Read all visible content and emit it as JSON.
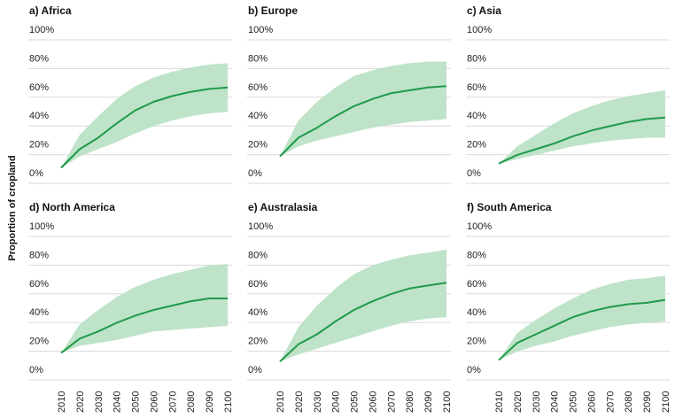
{
  "chart_data": {
    "type": "line",
    "ylabel": "Proportion of cropland",
    "x": [
      2010,
      2020,
      2030,
      2040,
      2050,
      2060,
      2070,
      2080,
      2090,
      2100
    ],
    "x_tick_labels": [
      "2010",
      "2020",
      "2030",
      "2040",
      "2050",
      "2060",
      "2070",
      "2080",
      "2090",
      "2100"
    ],
    "y_tick_labels": [
      "0%",
      "20%",
      "40%",
      "60%",
      "80%",
      "100%"
    ],
    "ylim": [
      0,
      100
    ],
    "grid": true,
    "line_color": "#1e9a4a",
    "band_color": "#bfe3c8",
    "panels": [
      {
        "title": "a) Africa",
        "median": [
          4,
          17,
          25,
          35,
          44,
          50,
          54,
          57,
          59,
          60
        ],
        "low": [
          4,
          12,
          17,
          22,
          28,
          33,
          37,
          40,
          42,
          43
        ],
        "high": [
          4,
          27,
          40,
          52,
          61,
          67,
          71,
          74,
          76,
          77
        ]
      },
      {
        "title": "b) Europe",
        "median": [
          12,
          25,
          32,
          40,
          47,
          52,
          56,
          58,
          60,
          61
        ],
        "low": [
          12,
          19,
          23,
          26,
          29,
          32,
          34,
          36,
          37,
          38
        ],
        "high": [
          12,
          37,
          50,
          60,
          68,
          72,
          75,
          77,
          78,
          78
        ]
      },
      {
        "title": "c) Asia",
        "median": [
          7,
          13,
          17,
          21,
          26,
          30,
          33,
          36,
          38,
          39
        ],
        "low": [
          7,
          10,
          13,
          16,
          19,
          21,
          23,
          24,
          25,
          25
        ],
        "high": [
          7,
          19,
          27,
          35,
          42,
          47,
          51,
          54,
          56,
          58
        ]
      },
      {
        "title": "d) North America",
        "median": [
          12,
          22,
          27,
          33,
          38,
          42,
          45,
          48,
          50,
          50
        ],
        "low": [
          12,
          17,
          19,
          21,
          24,
          27,
          28,
          29,
          30,
          31
        ],
        "high": [
          12,
          32,
          42,
          51,
          58,
          63,
          67,
          70,
          73,
          74
        ]
      },
      {
        "title": "e) Australasia",
        "median": [
          6,
          18,
          25,
          34,
          42,
          48,
          53,
          57,
          59,
          61
        ],
        "low": [
          6,
          11,
          15,
          19,
          23,
          27,
          31,
          34,
          36,
          37
        ],
        "high": [
          6,
          30,
          45,
          57,
          67,
          73,
          77,
          80,
          82,
          84
        ]
      },
      {
        "title": "f) South America",
        "median": [
          7,
          19,
          25,
          31,
          37,
          41,
          44,
          46,
          47,
          49
        ],
        "low": [
          7,
          13,
          17,
          20,
          24,
          27,
          30,
          32,
          33,
          34
        ],
        "high": [
          7,
          26,
          35,
          43,
          50,
          56,
          60,
          63,
          64,
          66
        ]
      }
    ]
  }
}
